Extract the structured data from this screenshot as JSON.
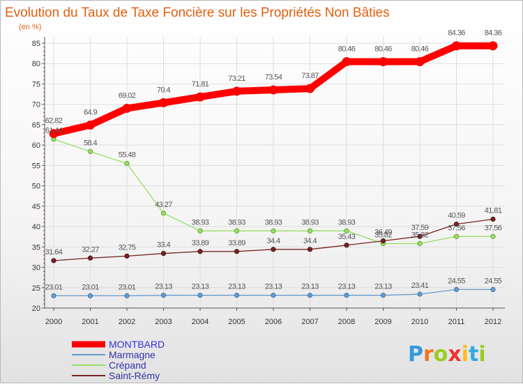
{
  "chart_data": {
    "type": "line",
    "title": "Evolution du Taux de Taxe Foncière sur les Propriétés Non Bâties",
    "ylabel": "(en %)",
    "xlabel": "",
    "ylim": [
      20,
      85
    ],
    "yticks": [
      "20",
      "25",
      "30",
      "35",
      "40",
      "45",
      "50",
      "55",
      "60",
      "65",
      "70",
      "75",
      "80",
      "85"
    ],
    "categories": [
      "2000",
      "2001",
      "2002",
      "2003",
      "2004",
      "2005",
      "2006",
      "2007",
      "2008",
      "2009",
      "2010",
      "2011",
      "2012"
    ],
    "series": [
      {
        "name": "MONTBARD",
        "color": "#ff0000",
        "values": [
          62.82,
          64.9,
          69.02,
          70.4,
          71.81,
          73.21,
          73.54,
          73.87,
          80.46,
          80.46,
          80.46,
          84.36,
          84.36
        ],
        "labels": [
          "62.82",
          "64.9",
          "69.02",
          "70.4",
          "71.81",
          "73.21",
          "73.54",
          "73.87",
          "80.46",
          "80.46",
          "80.46",
          "84.36",
          "84.36"
        ]
      },
      {
        "name": "Marmagne",
        "color": "#6699cc",
        "values": [
          23.01,
          23.01,
          23.01,
          23.13,
          23.13,
          23.13,
          23.13,
          23.13,
          23.13,
          23.13,
          23.41,
          24.55,
          24.55
        ],
        "labels": [
          "23.01",
          "23.01",
          "23.01",
          "23.13",
          "23.13",
          "23.13",
          "23.13",
          "23.13",
          "23.13",
          "23.13",
          "23.41",
          "24.55",
          "24.55"
        ]
      },
      {
        "name": "Crépand",
        "color": "#99dd66",
        "values": [
          61.44,
          58.4,
          55.48,
          43.27,
          38.93,
          38.93,
          38.93,
          38.93,
          38.93,
          35.82,
          35.82,
          37.56,
          37.56
        ],
        "labels": [
          "61.44",
          "58.4",
          "55.48",
          "43.27",
          "38.93",
          "38.93",
          "38.93",
          "38.93",
          "38.93",
          "35.82",
          "35.82",
          "37.56",
          "37.56"
        ]
      },
      {
        "name": "Saint-Rémy",
        "color": "#772222",
        "values": [
          31.64,
          32.27,
          32.75,
          33.4,
          33.89,
          33.89,
          34.4,
          34.4,
          35.43,
          36.49,
          37.59,
          40.59,
          41.81
        ],
        "labels": [
          "31.64",
          "32.27",
          "32.75",
          "33.4",
          "33.89",
          "33.89",
          "34.4",
          "34.4",
          "35.43",
          "36.49",
          "37.59",
          "40.59",
          "41.81"
        ]
      }
    ],
    "legend": {
      "position": "bottom-left",
      "entries": [
        "MONTBARD",
        "Marmagne",
        "Crépand",
        "Saint-Rémy"
      ]
    },
    "logo_text": "Proxiti"
  }
}
